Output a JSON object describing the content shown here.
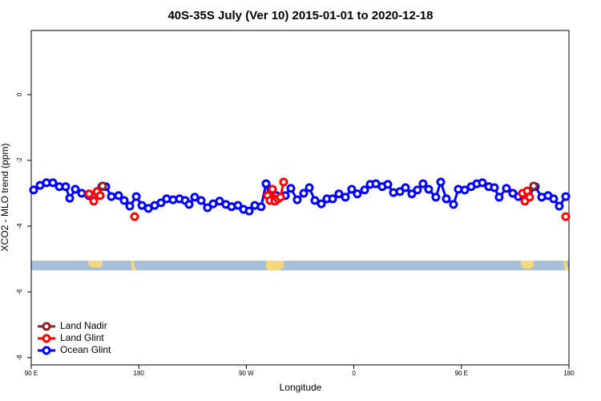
{
  "chart_data": {
    "type": "line",
    "title": "40S-35S July (Ver 10)   2015-01-01 to 2020-12-18",
    "xlabel": "Longitude",
    "ylabel": "XCO2 - MLO trend (ppm)",
    "xlim": [
      90,
      540
    ],
    "xticks": [
      {
        "value": 90,
        "label": "90 E"
      },
      {
        "value": 180,
        "label": "180"
      },
      {
        "value": 270,
        "label": "90 W"
      },
      {
        "value": 360,
        "label": "0"
      },
      {
        "value": 450,
        "label": "90 E"
      },
      {
        "value": 540,
        "label": "180"
      }
    ],
    "ylim": [
      -8.22,
      1.95
    ],
    "yticks": [
      0,
      -2,
      -4,
      -6,
      -8
    ],
    "legend": "bottom-left",
    "series": [
      {
        "name": "Land Nadir",
        "color": "#8b2323",
        "x": [
          149.7,
          null,
          510.5
        ],
        "values": [
          -2.78,
          null,
          -2.78
        ]
      },
      {
        "name": "Land Glint",
        "color": "#ff0000",
        "x": [
          138.3,
          142.3,
          145.0,
          147.7,
          null,
          176.5,
          null,
          287.8,
          289.8,
          291.9,
          293.9,
          296.5,
          298.6,
          301.2,
          null,
          501.1,
          503.1,
          505.1,
          507.1,
          null,
          537.3
        ],
        "values": [
          -3.02,
          -3.24,
          -2.95,
          -3.07,
          null,
          -3.71,
          null,
          -3.07,
          -3.22,
          -2.88,
          -3.24,
          -3.17,
          -3.12,
          -2.66,
          null,
          -3.0,
          -3.24,
          -2.93,
          -3.12,
          null,
          -3.71
        ]
      },
      {
        "name": "Ocean Glint",
        "color": "#0000ff",
        "x": [
          92.0,
          97.4,
          102.7,
          108.1,
          113.5,
          118.8,
          122.2,
          126.9,
          132.2,
          138.3,
          143.6,
          149.0,
          152.4,
          157.1,
          163.1,
          167.8,
          172.5,
          177.9,
          182.6,
          188.0,
          193.3,
          198.6,
          203.3,
          208.7,
          214.1,
          218.8,
          222.1,
          226.8,
          232.2,
          237.5,
          242.2,
          247.6,
          252.9,
          257.6,
          263.0,
          267.7,
          272.4,
          277.1,
          282.4,
          286.5,
          290.5,
          295.2,
          302.6,
          307.3,
          312.6,
          318.0,
          322.7,
          327.4,
          332.8,
          337.5,
          342.2,
          347.5,
          352.9,
          358.2,
          362.9,
          369.0,
          373.7,
          378.4,
          383.7,
          388.4,
          393.1,
          398.5,
          403.2,
          408.5,
          413.2,
          417.9,
          422.6,
          428.6,
          432.7,
          437.4,
          443.4,
          447.4,
          452.8,
          458.2,
          462.9,
          467.6,
          472.9,
          477.6,
          481.6,
          487.7,
          493.0,
          497.7,
          502.4,
          506.4,
          511.8,
          517.2,
          522.5,
          527.2,
          531.9,
          537.3
        ],
        "values": [
          -2.9,
          -2.76,
          -2.68,
          -2.68,
          -2.8,
          -2.8,
          -3.15,
          -2.88,
          -3.0,
          -3.07,
          -3.1,
          -2.8,
          -2.8,
          -3.1,
          -3.07,
          -3.22,
          -3.39,
          -3.1,
          -3.37,
          -3.46,
          -3.37,
          -3.29,
          -3.17,
          -3.2,
          -3.17,
          -3.22,
          -3.34,
          -3.12,
          -3.22,
          -3.44,
          -3.32,
          -3.24,
          -3.34,
          -3.41,
          -3.37,
          -3.49,
          -3.54,
          -3.37,
          -3.41,
          -2.71,
          -2.88,
          -3.07,
          -3.07,
          -2.85,
          -3.2,
          -3.0,
          -2.83,
          -3.22,
          -3.32,
          -3.17,
          -3.17,
          -3.02,
          -3.12,
          -2.88,
          -3.02,
          -2.9,
          -2.73,
          -2.71,
          -2.8,
          -2.73,
          -2.98,
          -2.95,
          -2.83,
          -3.02,
          -2.9,
          -2.71,
          -2.88,
          -3.12,
          -2.66,
          -3.17,
          -3.34,
          -2.88,
          -2.9,
          -2.8,
          -2.71,
          -2.68,
          -2.8,
          -2.83,
          -3.12,
          -2.85,
          -3.0,
          -3.1,
          -3.1,
          -3.07,
          -2.8,
          -3.12,
          -3.07,
          -3.17,
          -3.39,
          -3.1
        ]
      }
    ]
  }
}
